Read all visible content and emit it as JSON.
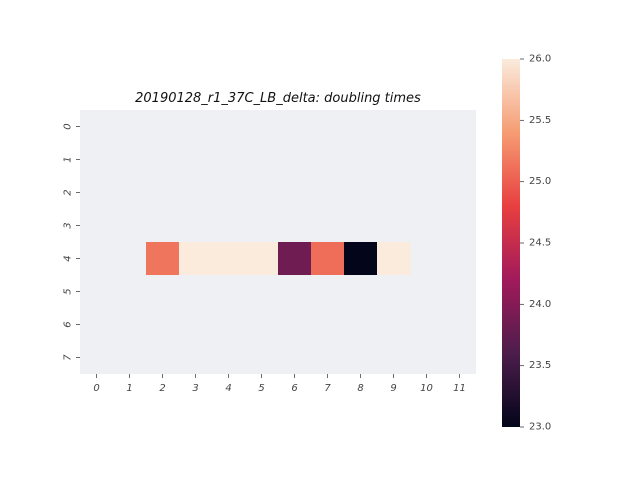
{
  "chart_data": {
    "type": "heatmap",
    "title": "20190128_r1_37C_LB_delta: doubling times",
    "x_categories": [
      "0",
      "1",
      "2",
      "3",
      "4",
      "5",
      "6",
      "7",
      "8",
      "9",
      "10",
      "11"
    ],
    "y_categories": [
      "0",
      "1",
      "2",
      "3",
      "4",
      "5",
      "6",
      "7"
    ],
    "empty_cell_color": "#eff0f4",
    "cells": [
      {
        "row": 4,
        "col": 2,
        "value": 25.15
      },
      {
        "row": 4,
        "col": 3,
        "value": 26.0
      },
      {
        "row": 4,
        "col": 4,
        "value": 26.0
      },
      {
        "row": 4,
        "col": 5,
        "value": 26.0
      },
      {
        "row": 4,
        "col": 6,
        "value": 23.85
      },
      {
        "row": 4,
        "col": 7,
        "value": 25.1
      },
      {
        "row": 4,
        "col": 8,
        "value": 23.0
      },
      {
        "row": 4,
        "col": 9,
        "value": 26.0
      }
    ],
    "colorbar": {
      "min": 23.0,
      "max": 26.0,
      "ticks": [
        "23.0",
        "23.5",
        "24.0",
        "24.5",
        "25.0",
        "25.5",
        "26.0"
      ],
      "colormap": "rocket",
      "stops": [
        "#03051a",
        "#4c1d4b",
        "#a11a5b",
        "#e83f3f",
        "#f69c73",
        "#faebdd"
      ]
    }
  }
}
